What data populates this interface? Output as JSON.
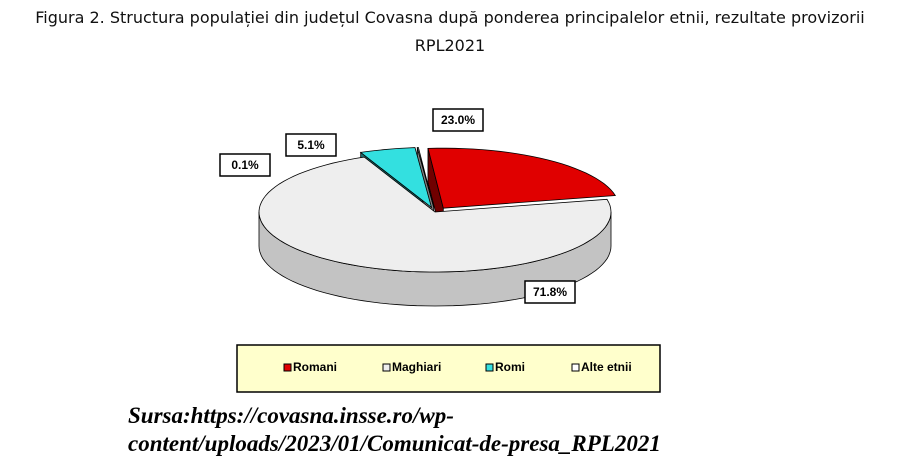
{
  "chart_data": {
    "type": "pie3d",
    "title": "Figura 2. Structura populației din județul Covasna după ponderea principalelor etnii, rezultate provizorii RPL2021",
    "categories": [
      "Romani",
      "Maghiari",
      "Romi",
      "Alte etnii"
    ],
    "values": [
      23.0,
      71.8,
      5.1,
      0.1
    ],
    "value_labels": [
      "23.0%",
      "71.8%",
      "5.1%",
      "0.1%"
    ],
    "colors": [
      "#e00000",
      "#eeeeee",
      "#33e0e0",
      "#ffffff"
    ],
    "exploded": [
      true,
      false,
      true,
      true
    ],
    "source": "Sursa:https://covasna.insse.ro/wp-content/uploads/2023/01/Comunicat-de-presa_RPL2021"
  }
}
